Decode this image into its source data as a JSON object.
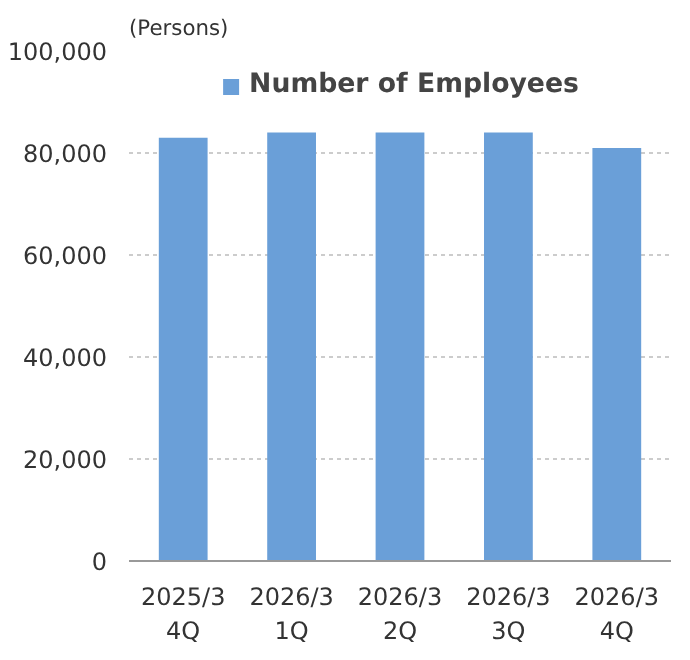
{
  "chart_data": {
    "type": "bar",
    "ylabel": "(Persons)",
    "categories": [
      "2025/3\n4Q",
      "2026/3\n1Q",
      "2026/3\n2Q",
      "2026/3\n3Q",
      "2026/3\n4Q"
    ],
    "series": [
      {
        "name": "Number of Employees",
        "color": "#6a9fd8",
        "values": [
          83000,
          84000,
          84000,
          84000,
          81000
        ]
      }
    ],
    "ylim": [
      0,
      100000
    ],
    "yticks": [
      {
        "value": 0,
        "label": "0"
      },
      {
        "value": 20000,
        "label": "20,000"
      },
      {
        "value": 40000,
        "label": "40,000"
      },
      {
        "value": 60000,
        "label": "60,000"
      },
      {
        "value": 80000,
        "label": "80,000"
      },
      {
        "value": 100000,
        "label": "100,000"
      }
    ],
    "grid": "y",
    "legend": "top"
  }
}
